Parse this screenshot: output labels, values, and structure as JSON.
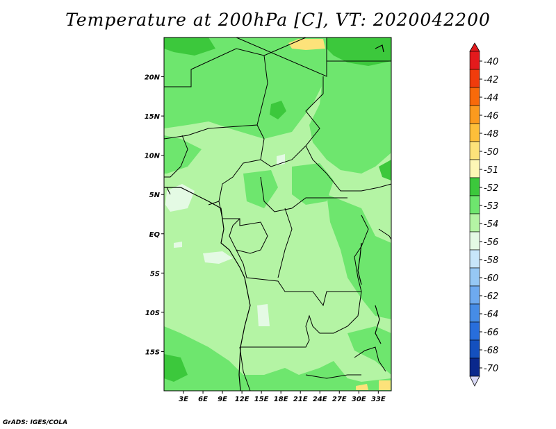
{
  "title": "Temperature at 200hPa [C], VT: 2020042200",
  "credit": "GrADS: IGES/COLA",
  "map": {
    "lon_range": [
      0,
      35
    ],
    "lat_range": [
      -20,
      25
    ],
    "lat_ticks": [
      {
        "lat": 20,
        "label": "20N"
      },
      {
        "lat": 15,
        "label": "15N"
      },
      {
        "lat": 10,
        "label": "10N"
      },
      {
        "lat": 5,
        "label": "5N"
      },
      {
        "lat": 0,
        "label": "EQ"
      },
      {
        "lat": -5,
        "label": "5S"
      },
      {
        "lat": -10,
        "label": "10S"
      },
      {
        "lat": -15,
        "label": "15S"
      }
    ],
    "lon_ticks": [
      {
        "lon": 3,
        "label": "3E"
      },
      {
        "lon": 6,
        "label": "6E"
      },
      {
        "lon": 9,
        "label": "9E"
      },
      {
        "lon": 12,
        "label": "12E"
      },
      {
        "lon": 15,
        "label": "15E"
      },
      {
        "lon": 18,
        "label": "18E"
      },
      {
        "lon": 21,
        "label": "21E"
      },
      {
        "lon": 24,
        "label": "24E"
      },
      {
        "lon": 27,
        "label": "27E"
      },
      {
        "lon": 30,
        "label": "30E"
      },
      {
        "lon": 33,
        "label": "33E"
      }
    ]
  },
  "colorbar": {
    "levels": [
      {
        "label": "-40",
        "color": "#e31a1c"
      },
      {
        "label": "-42",
        "color": "#f03c0c"
      },
      {
        "label": "-44",
        "color": "#f86a0a"
      },
      {
        "label": "-46",
        "color": "#fb9a1e"
      },
      {
        "label": "-48",
        "color": "#fdbf3a"
      },
      {
        "label": "-50",
        "color": "#fde27a"
      },
      {
        "label": "-51",
        "color": "#fdf7b6"
      },
      {
        "label": "-52",
        "color": "#3cc83c"
      },
      {
        "label": "-53",
        "color": "#6ee66e"
      },
      {
        "label": "-54",
        "color": "#b4f4a4"
      },
      {
        "label": "-56",
        "color": "#e4fae4"
      },
      {
        "label": "-58",
        "color": "#c8e6fa"
      },
      {
        "label": "-60",
        "color": "#96c8f5"
      },
      {
        "label": "-62",
        "color": "#6eaaf0"
      },
      {
        "label": "-64",
        "color": "#468ce6"
      },
      {
        "label": "-66",
        "color": "#286edc"
      },
      {
        "label": "-68",
        "color": "#1450be"
      },
      {
        "label": "-70",
        "color": "#0a288c"
      }
    ],
    "top_color": "#e31a1c",
    "bottom_color": "#d8d8f5"
  }
}
